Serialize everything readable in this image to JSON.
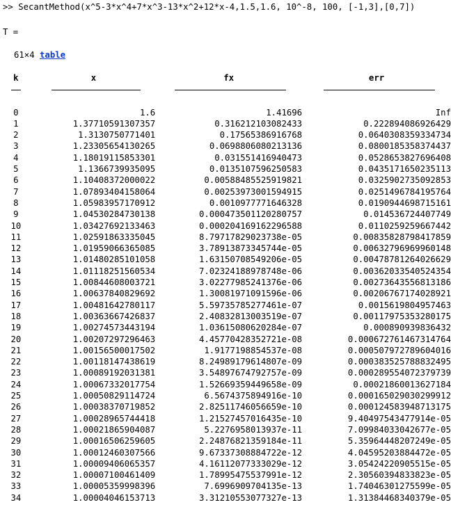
{
  "command": {
    "prompt": ">>",
    "text": "SecantMethod(x^5-3*x^4+7*x^3-13*x^2+12*x-4,1.5,1.6, 10^-8, 100, [-1,3],[0,7])"
  },
  "output": {
    "var_label": "T =",
    "size_label": "61×4",
    "type_link": "table"
  },
  "table": {
    "headers": [
      "k",
      "x",
      "fx",
      "err"
    ],
    "rows": [
      [
        "0",
        "1.6",
        "1.41696",
        "Inf"
      ],
      [
        "1",
        "1.37710591307357",
        "0.316212103082433",
        "0.222894086926429"
      ],
      [
        "2",
        "1.3130750771401",
        "0.17565386916768",
        "0.0640308359334734"
      ],
      [
        "3",
        "1.23305654130265",
        "0.0698806080213136",
        "0.0800185358374437"
      ],
      [
        "4",
        "1.18019115853301",
        "0.031551416940473",
        "0.0528653827696408"
      ],
      [
        "5",
        "1.1366739935095",
        "0.0135107596250583",
        "0.0435171650235113"
      ],
      [
        "6",
        "1.10408372000022",
        "0.00588485525919821",
        "0.0325902735092853"
      ],
      [
        "7",
        "1.07893404158064",
        "0.00253973001594915",
        "0.0251496784195764"
      ],
      [
        "8",
        "1.05983957170912",
        "0.0010977771646328",
        "0.0190944698715161"
      ],
      [
        "9",
        "1.04530284730138",
        "0.000473501120280757",
        "0.014536724407749"
      ],
      [
        "10",
        "1.03427692133463",
        "0.000204169162296588",
        "0.0110259259667442"
      ],
      [
        "11",
        "1.02591863335045",
        "8.79717829023738e-05",
        "0.00835828798417859"
      ],
      [
        "12",
        "1.01959066365085",
        "3.78913873345744e-05",
        "0.00632796969960148"
      ],
      [
        "13",
        "1.01480285101058",
        "1.63150708549206e-05",
        "0.00478781264026629"
      ],
      [
        "14",
        "1.01118251560534",
        "7.02324188978748e-06",
        "0.00362033540524354"
      ],
      [
        "15",
        "1.00844608003721",
        "3.02277985241376e-06",
        "0.00273643556813186"
      ],
      [
        "16",
        "1.00637840829692",
        "1.30081971091596e-06",
        "0.00206767174028921"
      ],
      [
        "17",
        "1.00481642780117",
        "5.59735785277461e-07",
        "0.0015619804957463"
      ],
      [
        "18",
        "1.00363667426837",
        "2.40832813003519e-07",
        "0.00117975353280175"
      ],
      [
        "19",
        "1.00274573443194",
        "1.03615080620284e-07",
        "0.000890939836432"
      ],
      [
        "20",
        "1.00207297296463",
        "4.45770428352721e-08",
        "0.000672761467314764"
      ],
      [
        "21",
        "1.00156500017502",
        "1.9177198854537e-08",
        "0.000507972789604016"
      ],
      [
        "22",
        "1.00118147438619",
        "8.24989179614807e-09",
        "0.000383525788832495"
      ],
      [
        "23",
        "1.00089192031381",
        "3.54897674792757e-09",
        "0.000289554072379739"
      ],
      [
        "24",
        "1.00067332017754",
        "1.52669359449658e-09",
        "0.00021860013627184"
      ],
      [
        "25",
        "1.00050829114724",
        "6.5674375894916e-10",
        "0.000165029030299912"
      ],
      [
        "26",
        "1.00038370719852",
        "2.82511746056659e-10",
        "0.000124583948713175"
      ],
      [
        "27",
        "1.00028965744418",
        "1.21527457016435e-10",
        "9.40497543477914e-05"
      ],
      [
        "28",
        "1.00021865904087",
        "5.2276958013937e-11",
        "7.09984033042677e-05"
      ],
      [
        "29",
        "1.00016506259605",
        "2.24876821359184e-11",
        "5.35964448207249e-05"
      ],
      [
        "30",
        "1.00012460307566",
        "9.67337308884722e-12",
        "4.04595203884472e-05"
      ],
      [
        "31",
        "1.00009406065357",
        "4.16112077333029e-12",
        "3.05424220905515e-05"
      ],
      [
        "32",
        "1.00007100461409",
        "1.78995475537991e-12",
        "2.30560394833823e-05"
      ],
      [
        "33",
        "1.00005359998396",
        "7.6996909704135e-13",
        "1.74046301275599e-05"
      ],
      [
        "34",
        "1.00004046153713",
        "3.31210553077327e-13",
        "1.31384468340379e-05"
      ]
    ]
  }
}
